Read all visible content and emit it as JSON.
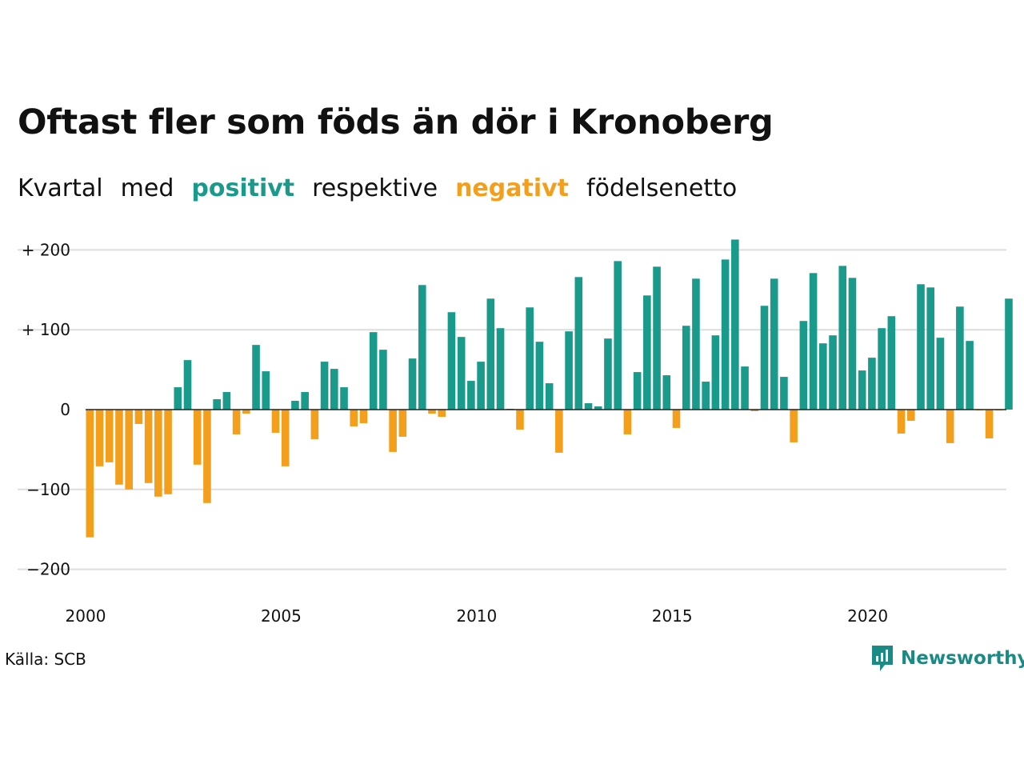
{
  "title": "Oftast fler som föds än dör i Kronoberg",
  "subtitle": {
    "w1": "Kvartal",
    "w2": "med",
    "w3": "positivt",
    "w4": "respektive",
    "w5": "negativt",
    "w6": "födelsenetto"
  },
  "source": "Källa: SCB",
  "brand": "Newsworthy",
  "colors": {
    "positive": "#1a9a8a",
    "negative": "#f49f1c",
    "grid": "#dddddd",
    "brand": "#1a8a84"
  },
  "chart_data": {
    "type": "bar",
    "x_start": "2000 Q1",
    "x_ticks": [
      {
        "year": 2000,
        "label": "2000"
      },
      {
        "year": 2005,
        "label": "2005"
      },
      {
        "year": 2010,
        "label": "2010"
      },
      {
        "year": 2015,
        "label": "2015"
      },
      {
        "year": 2020,
        "label": "2020"
      }
    ],
    "y_ticks": [
      {
        "value": 200,
        "label": "+ 200"
      },
      {
        "value": 100,
        "label": "+ 100"
      },
      {
        "value": 0,
        "label": "0"
      },
      {
        "value": -100,
        "label": "−100"
      },
      {
        "value": -200,
        "label": "−200"
      }
    ],
    "ylim": [
      -220,
      220
    ],
    "grid": true,
    "values": [
      -160,
      -71,
      -66,
      -94,
      -100,
      -18,
      -92,
      -109,
      -106,
      28,
      62,
      -69,
      -117,
      13,
      22,
      -31,
      -5,
      81,
      48,
      -29,
      -71,
      11,
      22,
      -37,
      60,
      51,
      28,
      -21,
      -17,
      97,
      75,
      -53,
      -34,
      64,
      156,
      -5,
      -9,
      122,
      91,
      36,
      60,
      139,
      102,
      1,
      -25,
      128,
      85,
      33,
      -54,
      98,
      166,
      8,
      4,
      89,
      186,
      -31,
      47,
      143,
      179,
      43,
      -23,
      105,
      164,
      35,
      93,
      188,
      213,
      54,
      -2,
      130,
      164,
      41,
      -41,
      111,
      171,
      83,
      93,
      180,
      165,
      49,
      65,
      102,
      117,
      -30,
      -14,
      157,
      153,
      90,
      -42,
      129,
      86,
      -1,
      -36,
      -1,
      139
    ]
  }
}
